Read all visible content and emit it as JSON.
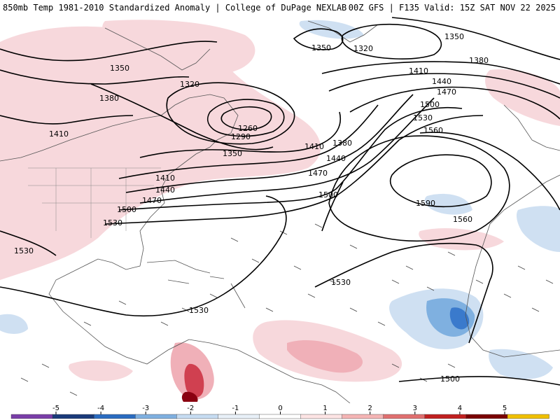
{
  "header": {
    "title": "850mb Temp 1981-2010 Standardized Anomaly | College of DuPage NEXLAB",
    "run_info": "00Z GFS | F135 Valid: 15Z SAT NOV 22 2025"
  },
  "contour_labels": {
    "c1350a": "1350",
    "c1320a": "1320",
    "c1350b": "1350",
    "c1380a": "1380",
    "c1350c": "1350",
    "c1380b": "1380",
    "c1320b": "1320",
    "c1260": "1260",
    "c1290": "1290",
    "c1350d": "1350",
    "c1410a": "1410",
    "c1410b": "1410",
    "c1440a": "1440",
    "c1470a": "1470",
    "c1500a": "1500",
    "c1530a": "1530",
    "c1530b": "1530",
    "c1410c": "1410",
    "c1380c": "1380",
    "c1440b": "1440",
    "c1470b": "1470",
    "c1500b": "1500",
    "c1410d": "1410",
    "c1440c": "1440",
    "c1470c": "1470",
    "c1500c": "1500",
    "c1530c": "1530",
    "c1560a": "1560",
    "c1590": "1590",
    "c1560b": "1560",
    "c1530d": "1530",
    "c1530e": "1530",
    "c1500d": "1500"
  },
  "colorbar": {
    "labels": [
      "-5",
      "-4",
      "-3",
      "-2",
      "-1",
      "0",
      "1",
      "2",
      "3",
      "4",
      "5"
    ],
    "colors": [
      "#7a3ea8",
      "#1a3a7a",
      "#2a6cc0",
      "#7fb0e0",
      "#c6dcf2",
      "#e8f0f8",
      "#ffffff",
      "#fde4e4",
      "#f5b5b5",
      "#e07070",
      "#c02020",
      "#7a0000",
      "#f0c000"
    ]
  },
  "anomaly_colors": {
    "warm_light": "#f7d8dc",
    "warm_mid": "#f0b0b8",
    "warm_dark": "#d04050",
    "cold_light": "#cfe0f2",
    "cold_mid": "#7fb0e0",
    "cold_dark": "#3a7acc"
  }
}
